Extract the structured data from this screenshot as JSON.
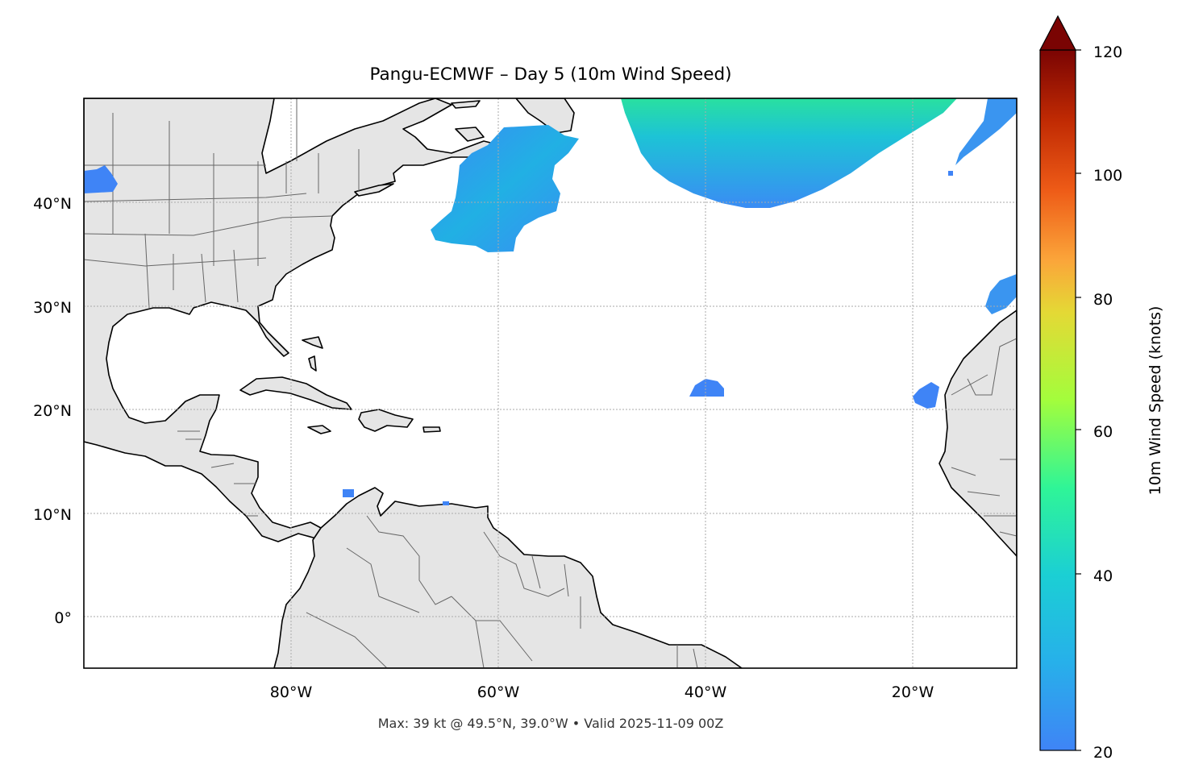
{
  "title": "Pangu-ECMWF – Day 5 (10m Wind Speed)",
  "footer": "Max: 39 kt @ 49.5°N, 39.0°W • Valid 2025-11-09 00Z",
  "map": {
    "lon_range": [
      -100,
      -10
    ],
    "lat_range": [
      -5,
      50
    ],
    "lat_ticks": [
      "40°N",
      "30°N",
      "20°N",
      "10°N",
      "0°"
    ],
    "lon_ticks": [
      "80°W",
      "60°W",
      "40°W",
      "20°W"
    ],
    "land_color": "#e5e5e5",
    "coast_color": "#000000",
    "border_color": "#555555",
    "gridlines": "dotted"
  },
  "colorbar": {
    "label": "10m Wind Speed (knots)",
    "ticks": [
      "20",
      "40",
      "60",
      "80",
      "100",
      "120"
    ],
    "range": [
      20,
      120
    ],
    "extend": "max",
    "colormap": "turbo",
    "stops": [
      "#3f84f6",
      "#1bcfd4",
      "#2ff597",
      "#a3fd3c",
      "#e4d935",
      "#fba53a",
      "#ee5b17",
      "#c02a03",
      "#7a0403"
    ]
  }
}
